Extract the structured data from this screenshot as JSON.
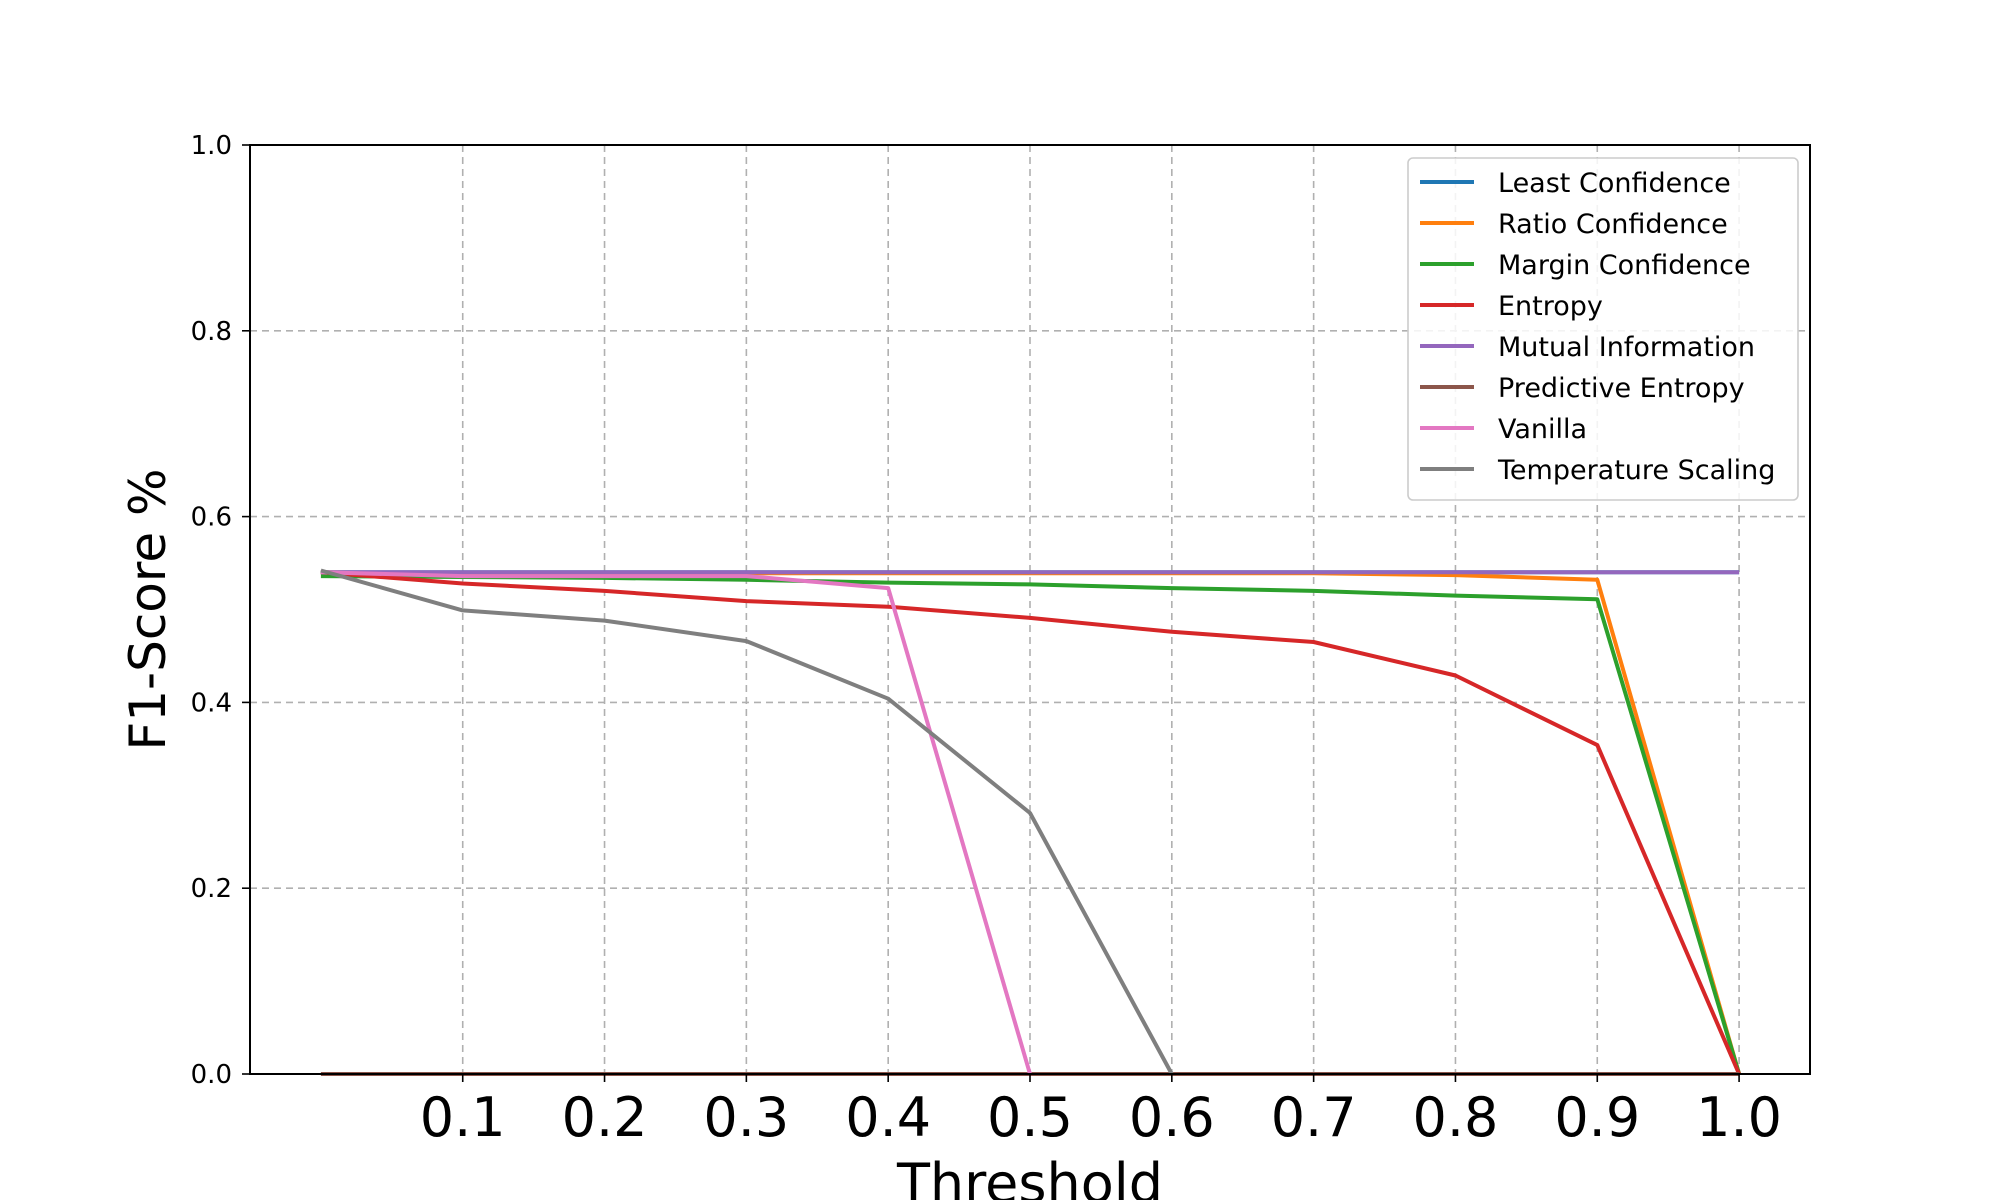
{
  "chart_data": {
    "type": "line",
    "xlabel": "Threshold",
    "ylabel": "F1-Score %",
    "xlim": [
      -0.05,
      1.05
    ],
    "ylim": [
      0.0,
      1.0
    ],
    "x_ticks": [
      0.1,
      0.2,
      0.3,
      0.4,
      0.5,
      0.6,
      0.7,
      0.8,
      0.9,
      1.0
    ],
    "x_tick_labels": [
      "0.1",
      "0.2",
      "0.3",
      "0.4",
      "0.5",
      "0.6",
      "0.7",
      "0.8",
      "0.9",
      "1.0"
    ],
    "y_ticks": [
      0.0,
      0.2,
      0.4,
      0.6,
      0.8,
      1.0
    ],
    "y_tick_labels": [
      "0.0",
      "0.2",
      "0.4",
      "0.6",
      "0.8",
      "1.0"
    ],
    "grid": true,
    "legend_position": "top-right",
    "x": [
      0.0,
      0.1,
      0.2,
      0.3,
      0.4,
      0.5,
      0.6,
      0.7,
      0.8,
      0.9,
      1.0
    ],
    "series": [
      {
        "name": "Least Confidence",
        "color": "#1f77b4",
        "values": [
          0.54,
          0.54,
          0.54,
          0.54,
          0.54,
          0.54,
          0.54,
          0.54,
          0.54,
          0.54,
          0.54
        ]
      },
      {
        "name": "Ratio Confidence",
        "color": "#ff7f0e",
        "values": [
          0.54,
          0.539,
          0.539,
          0.539,
          0.539,
          0.539,
          0.539,
          0.539,
          0.537,
          0.532,
          0.0
        ]
      },
      {
        "name": "Margin Confidence",
        "color": "#2ca02c",
        "values": [
          0.536,
          0.535,
          0.534,
          0.532,
          0.529,
          0.527,
          0.523,
          0.52,
          0.515,
          0.511,
          0.0
        ]
      },
      {
        "name": "Entropy",
        "color": "#d62728",
        "values": [
          0.54,
          0.528,
          0.52,
          0.509,
          0.503,
          0.491,
          0.476,
          0.465,
          0.429,
          0.354,
          0.0
        ]
      },
      {
        "name": "Mutual Information",
        "color": "#9467bd",
        "values": [
          0.54,
          0.54,
          0.54,
          0.54,
          0.54,
          0.54,
          0.54,
          0.54,
          0.54,
          0.54,
          0.54
        ]
      },
      {
        "name": "Predictive Entropy",
        "color": "#8c564b",
        "values": [
          0.0,
          0.0,
          0.0,
          0.0,
          0.0,
          0.0,
          0.0,
          0.0,
          0.0,
          0.0,
          0.0
        ]
      },
      {
        "name": "Vanilla",
        "color": "#e377c2",
        "x": [
          0.0,
          0.1,
          0.2,
          0.3,
          0.4,
          0.5
        ],
        "values": [
          0.54,
          0.536,
          0.536,
          0.536,
          0.523,
          0.0
        ]
      },
      {
        "name": "Temperature Scaling",
        "color": "#7f7f7f",
        "x": [
          0.0,
          0.1,
          0.2,
          0.3,
          0.4,
          0.5,
          0.6
        ],
        "values": [
          0.542,
          0.499,
          0.488,
          0.466,
          0.404,
          0.281,
          0.0
        ]
      }
    ]
  }
}
